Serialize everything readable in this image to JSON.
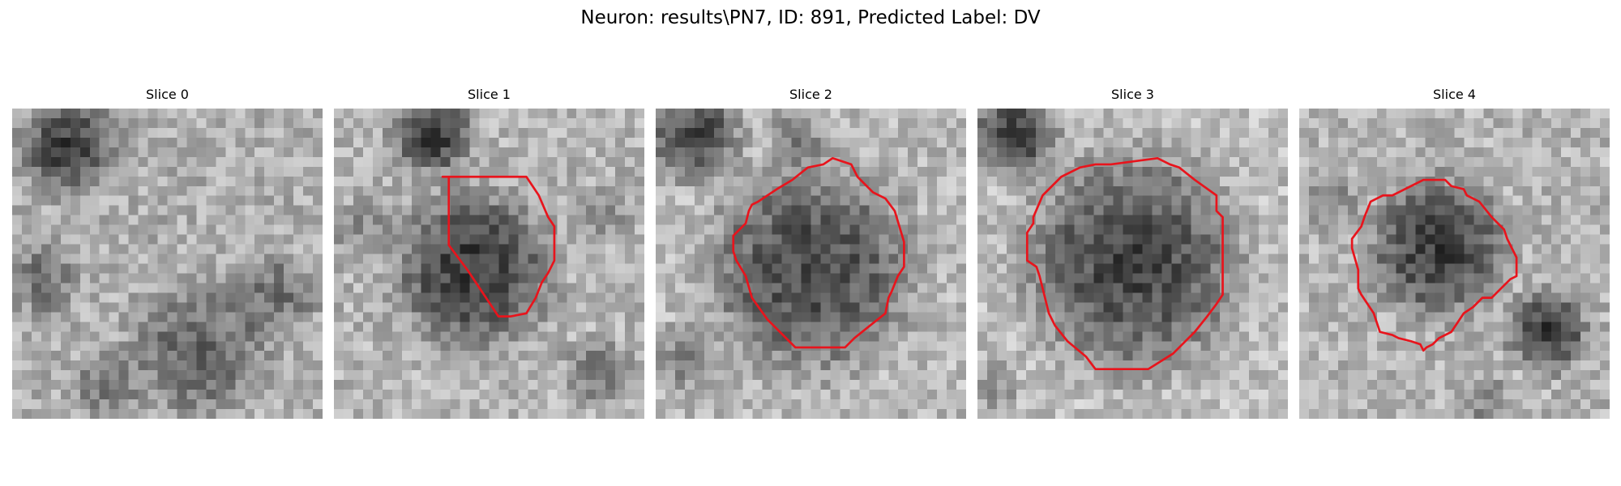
{
  "figure": {
    "title": "Neuron: results\\PN7, ID: 891, Predicted Label: DV"
  },
  "colors": {
    "contour": "#e8141c",
    "background": "#ffffff"
  },
  "panels": [
    {
      "label": "Slice 0",
      "has_contour": false
    },
    {
      "label": "Slice 1",
      "has_contour": true
    },
    {
      "label": "Slice 2",
      "has_contour": true
    },
    {
      "label": "Slice 3",
      "has_contour": true
    },
    {
      "label": "Slice 4",
      "has_contour": true
    }
  ]
}
